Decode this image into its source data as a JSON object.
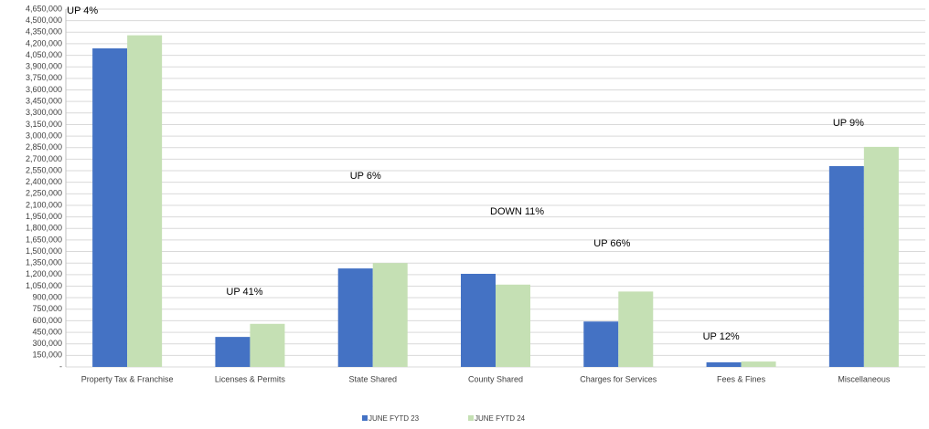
{
  "chart_data": {
    "type": "bar",
    "categories": [
      "Property Tax & Franchise",
      "Licenses & Permits",
      "State Shared",
      "County Shared",
      "Charges for Services",
      "Fees & Fines",
      "Miscellaneous"
    ],
    "series": [
      {
        "name": "JUNE FYTD 23",
        "color": "#4472c4",
        "values": [
          4140000,
          390000,
          1280000,
          1210000,
          590000,
          60000,
          2610000
        ]
      },
      {
        "name": "JUNE  FYTD 24",
        "color": "#c5e0b4",
        "values": [
          4310000,
          560000,
          1350000,
          1070000,
          980000,
          70000,
          2860000
        ]
      }
    ],
    "annotations": [
      "UP 4%",
      "UP 41%",
      "UP 6%",
      "DOWN 11%",
      "UP 66%",
      "UP 12%",
      "UP 9%"
    ],
    "ylim": [
      0,
      4650000
    ],
    "yticks": [
      {
        "value": 0,
        "label": "-"
      },
      {
        "value": 150000,
        "label": "150,000"
      },
      {
        "value": 300000,
        "label": "300,000"
      },
      {
        "value": 450000,
        "label": "450,000"
      },
      {
        "value": 600000,
        "label": "600,000"
      },
      {
        "value": 750000,
        "label": "750,000"
      },
      {
        "value": 900000,
        "label": "900,000"
      },
      {
        "value": 1050000,
        "label": "1,050,000"
      },
      {
        "value": 1200000,
        "label": "1,200,000"
      },
      {
        "value": 1350000,
        "label": "1,350,000"
      },
      {
        "value": 1500000,
        "label": "1,500,000"
      },
      {
        "value": 1650000,
        "label": "1,650,000"
      },
      {
        "value": 1800000,
        "label": "1,800,000"
      },
      {
        "value": 1950000,
        "label": "1,950,000"
      },
      {
        "value": 2100000,
        "label": "2,100,000"
      },
      {
        "value": 2250000,
        "label": "2,250,000"
      },
      {
        "value": 2400000,
        "label": "2,400,000"
      },
      {
        "value": 2550000,
        "label": "2,550,000"
      },
      {
        "value": 2700000,
        "label": "2,700,000"
      },
      {
        "value": 2850000,
        "label": "2,850,000"
      },
      {
        "value": 3000000,
        "label": "3,000,000"
      },
      {
        "value": 3150000,
        "label": "3,150,000"
      },
      {
        "value": 3300000,
        "label": "3,300,000"
      },
      {
        "value": 3450000,
        "label": "3,450,000"
      },
      {
        "value": 3600000,
        "label": "3,600,000"
      },
      {
        "value": 3750000,
        "label": "3,750,000"
      },
      {
        "value": 3900000,
        "label": "3,900,000"
      },
      {
        "value": 4050000,
        "label": "4,050,000"
      },
      {
        "value": 4200000,
        "label": "4,200,000"
      },
      {
        "value": 4350000,
        "label": "4,350,000"
      },
      {
        "value": 4500000,
        "label": "4,500,000"
      },
      {
        "value": 4650000,
        "label": "4,650,000"
      }
    ],
    "grid": true,
    "legend": "bottom"
  }
}
